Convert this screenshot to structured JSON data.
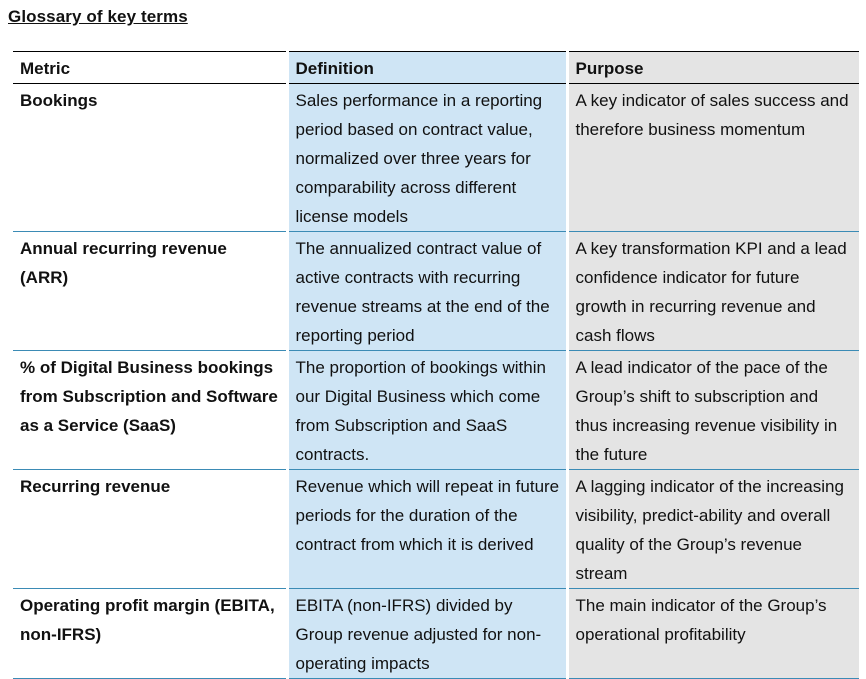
{
  "title": "Glossary of key terms",
  "table": {
    "headers": {
      "metric": "Metric",
      "definition": "Definition",
      "purpose": "Purpose"
    },
    "rows": [
      {
        "metric": "Bookings",
        "definition": "Sales performance in a reporting period based on contract value, normalized over three years for comparability across different license models",
        "purpose": "A key indicator of sales success and therefore business momentum"
      },
      {
        "metric": "Annual recurring revenue (ARR)",
        "definition": "The annualized contract value of active contracts with recurring revenue streams at the end of the reporting period",
        "purpose": "A key transformation KPI and a lead confidence indicator for future growth in recurring revenue and cash flows"
      },
      {
        "metric": "% of Digital Business bookings from Subscription and Software as a Service (SaaS)",
        "definition": "The proportion of bookings within our Digital Business which come from Subscription and SaaS contracts.",
        "purpose": "A lead indicator of the pace of the Group’s shift to subscription and thus increasing revenue visibility in the future"
      },
      {
        "metric": "Recurring revenue",
        "definition": "Revenue which will repeat in future periods for the duration of the contract from which it is derived",
        "purpose": "A lagging indicator of the increasing visibility, predict-ability and overall quality of the Group’s revenue stream"
      },
      {
        "metric": "Operating profit margin (EBITA, non-IFRS)",
        "definition": "EBITA (non-IFRS) divided by Group revenue adjusted for non-operating impacts",
        "purpose": "The main indicator of the Group’s operational profitability"
      }
    ]
  },
  "colors": {
    "definition_bg": "#cfe5f5",
    "purpose_bg": "#e4e4e4",
    "row_divider": "#3b8bb5"
  }
}
